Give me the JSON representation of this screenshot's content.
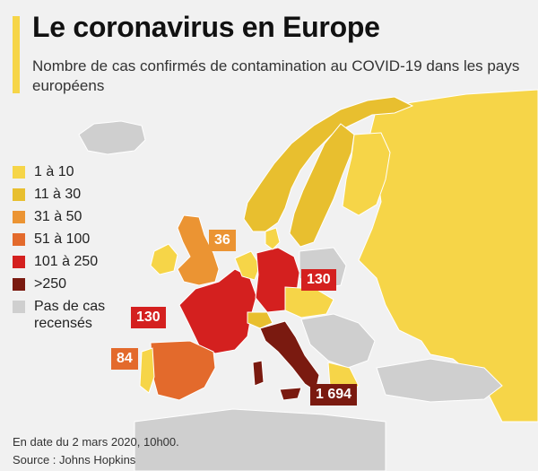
{
  "title": "Le coronavirus en Europe",
  "subtitle": "Nombre de cas confirmés de contamination au COVID-19 dans les pays européens",
  "colors": {
    "background": "#f1f1f1",
    "sea": "#f1f1f1",
    "no_data": "#cfcfcf",
    "c1": "#f6d548",
    "c2": "#e8bf2f",
    "c3": "#eb9433",
    "c4": "#e36a2c",
    "c5": "#d4201f",
    "c6": "#7a1a10",
    "accent": "#f6d548"
  },
  "legend": [
    {
      "label": "1 à 10",
      "color": "#f6d548"
    },
    {
      "label": "11 à 30",
      "color": "#e8bf2f"
    },
    {
      "label": "31 à 50",
      "color": "#eb9433"
    },
    {
      "label": "51 à 100",
      "color": "#e36a2c"
    },
    {
      "label": "101 à 250",
      "color": "#d4201f"
    },
    {
      "label": ">250",
      "color": "#7a1a10"
    },
    {
      "label": "Pas de cas recensés",
      "color": "#cfcfcf"
    }
  ],
  "callouts": [
    {
      "country": "Royaume-Uni",
      "value": "36",
      "color": "#eb9433"
    },
    {
      "country": "Allemagne",
      "value": "130",
      "color": "#d4201f"
    },
    {
      "country": "France",
      "value": "130",
      "color": "#d4201f"
    },
    {
      "country": "Espagne",
      "value": "84",
      "color": "#e36a2c"
    },
    {
      "country": "Italie",
      "value": "1 694",
      "color": "#7a1a10"
    }
  ],
  "footer": {
    "date": "En date du 2 mars 2020, 10h00.",
    "source": "Source : Johns Hopkins"
  }
}
